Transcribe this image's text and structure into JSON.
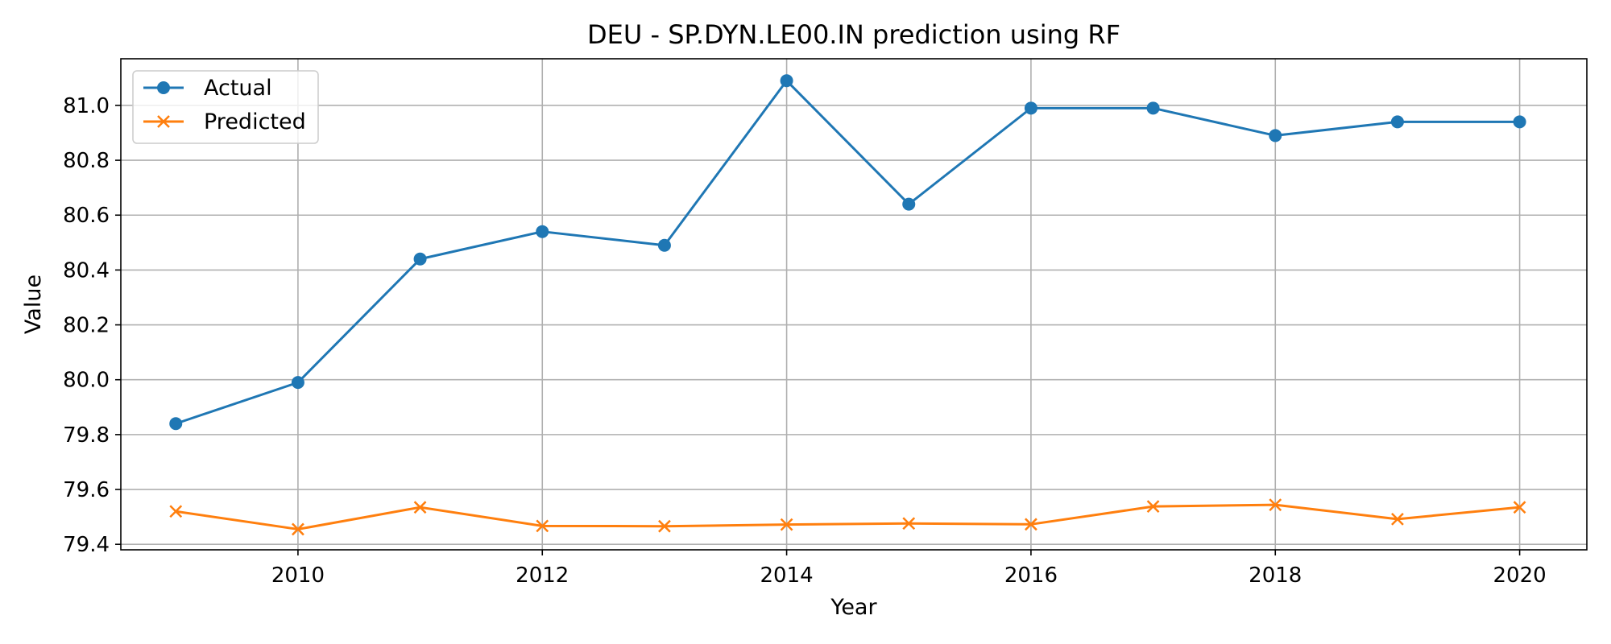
{
  "chart_data": {
    "type": "line",
    "title": "DEU - SP.DYN.LE00.IN prediction using RF",
    "xlabel": "Year",
    "ylabel": "Value",
    "xlim": [
      2008.55,
      2020.55
    ],
    "ylim": [
      79.38,
      81.17
    ],
    "xticks": [
      2010,
      2012,
      2014,
      2016,
      2018,
      2020
    ],
    "yticks": [
      79.4,
      79.6,
      79.8,
      80.0,
      80.2,
      80.4,
      80.6,
      80.8,
      81.0
    ],
    "ytick_labels": [
      "79.4",
      "79.6",
      "79.8",
      "80.0",
      "80.2",
      "80.4",
      "80.6",
      "80.8",
      "81.0"
    ],
    "grid": true,
    "legend_position": "top-left",
    "x": [
      2009,
      2010,
      2011,
      2012,
      2013,
      2014,
      2015,
      2016,
      2017,
      2018,
      2019,
      2020
    ],
    "series": [
      {
        "name": "Actual",
        "color": "#1f77b4",
        "marker": "circle",
        "values": [
          79.84,
          79.99,
          80.44,
          80.54,
          80.49,
          81.09,
          80.64,
          80.99,
          80.99,
          80.89,
          80.94,
          80.94
        ]
      },
      {
        "name": "Predicted",
        "color": "#ff7f0e",
        "marker": "x",
        "values": [
          79.52,
          79.455,
          79.535,
          79.467,
          79.466,
          79.472,
          79.476,
          79.473,
          79.538,
          79.544,
          79.492,
          79.535
        ]
      }
    ]
  }
}
